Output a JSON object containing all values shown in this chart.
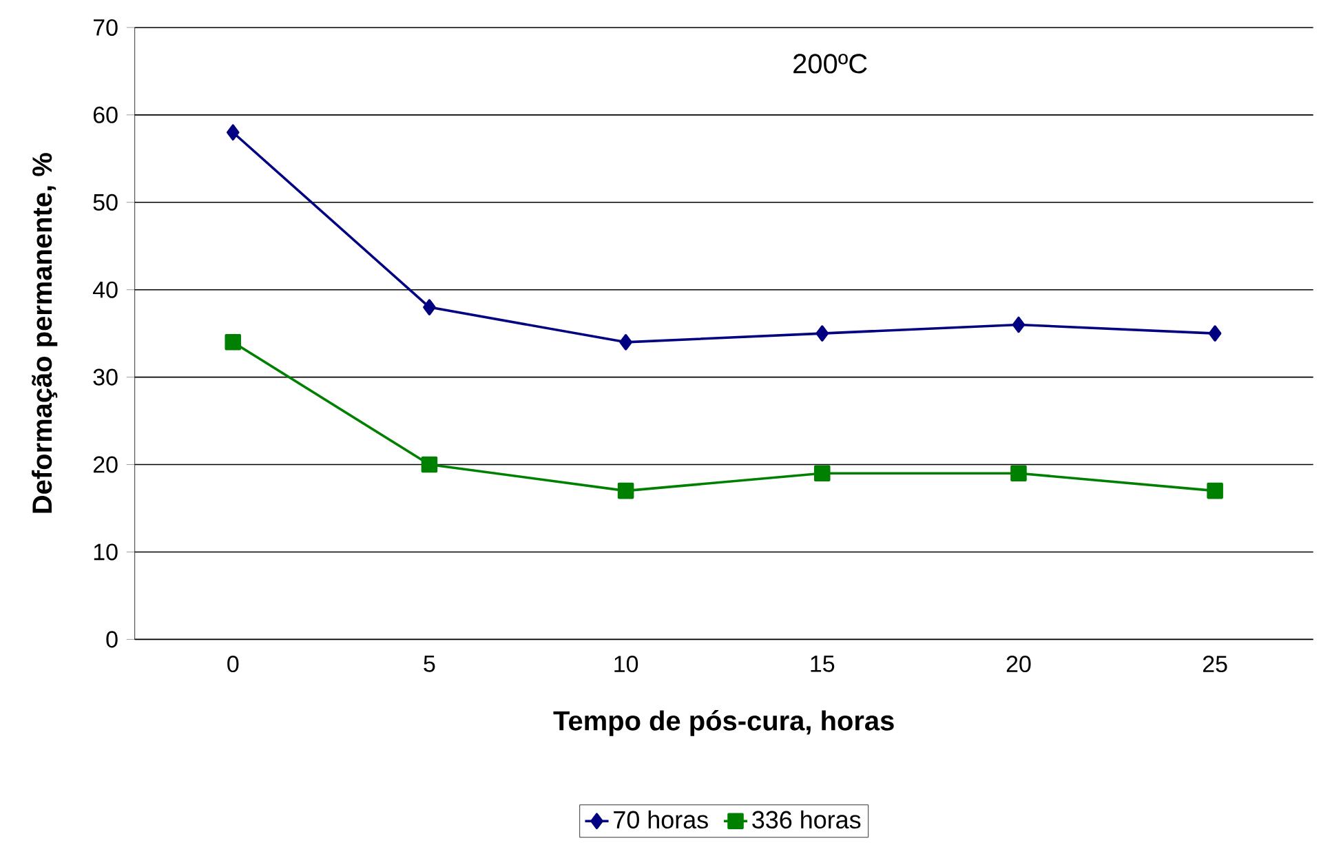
{
  "chart_data": {
    "type": "line",
    "xlabel": "Tempo de pós-cura, horas",
    "ylabel": "Deformação permanente, %",
    "annotations": [
      "200ºC"
    ],
    "categories": [
      "0",
      "5",
      "10",
      "15",
      "20",
      "25"
    ],
    "series": [
      {
        "name": "70 horas",
        "color": "#000080",
        "marker": "diamond",
        "values": [
          58,
          38,
          34,
          35,
          36,
          35
        ]
      },
      {
        "name": "336 horas",
        "color": "#008000",
        "marker": "square",
        "values": [
          34,
          20,
          17,
          19,
          19,
          17
        ]
      }
    ],
    "ylim": [
      0,
      70
    ],
    "yticks": [
      0,
      10,
      20,
      30,
      40,
      50,
      60,
      70
    ],
    "grid": "y",
    "legend": "bottom",
    "line_style": "solid"
  }
}
